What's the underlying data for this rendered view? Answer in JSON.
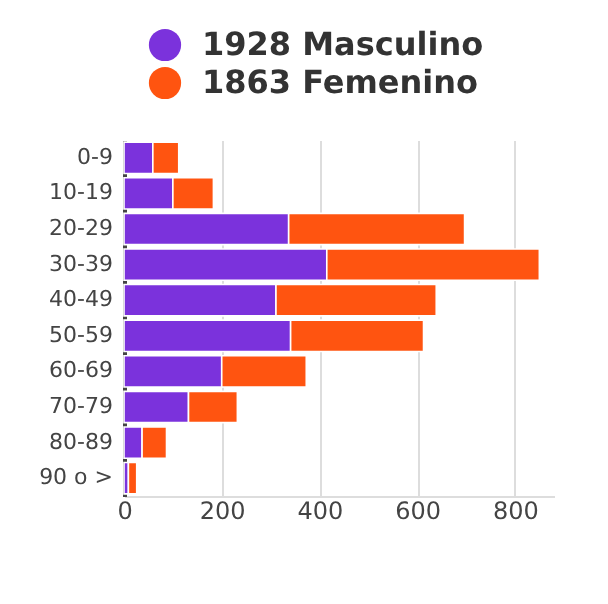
{
  "chart_data": {
    "type": "bar",
    "orientation": "horizontal",
    "stacked": true,
    "categories": [
      "0-9",
      "10-19",
      "20-29",
      "30-39",
      "40-49",
      "50-59",
      "60-69",
      "70-79",
      "80-89",
      "90 o >"
    ],
    "series": [
      {
        "name": "1928 Masculino",
        "color": "#7b32dc",
        "values": [
          59,
          100,
          337,
          415,
          311,
          341,
          200,
          132,
          37,
          9
        ]
      },
      {
        "name": "1863 Femenino",
        "color": "#ff5410",
        "values": [
          53,
          83,
          360,
          435,
          328,
          272,
          173,
          100,
          50,
          17
        ]
      }
    ],
    "xlim": [
      0,
      880
    ],
    "xticks": [
      0,
      200,
      400,
      600,
      800
    ],
    "grid": "x",
    "legend": "top"
  }
}
